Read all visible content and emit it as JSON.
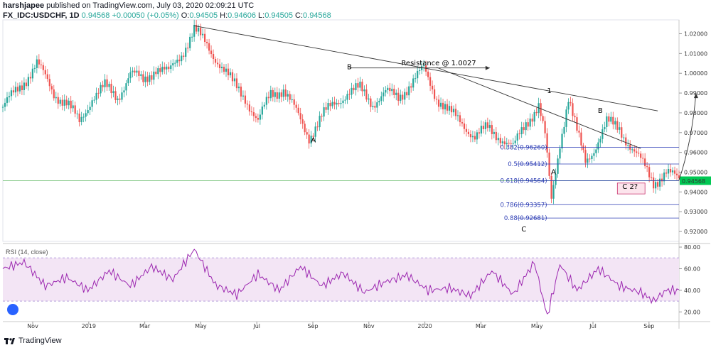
{
  "header": {
    "author": "harshjapee",
    "published": " published on TradingView.com, July 03, 2020 02:09:21 UTC",
    "symbol": "FX_IDC:USDCHF, 1D",
    "last": "0.94568",
    "change": "+0.00050 (+0.05%)",
    "open_label": "O:",
    "open": "0.94505",
    "high_label": "H:",
    "high": "0.94606",
    "low_label": "L:",
    "low": "0.94505",
    "close_label": "C:",
    "close": "0.94568"
  },
  "footer": {
    "brand": "TradingView"
  },
  "colors": {
    "up": "#26a69a",
    "down": "#ef5350",
    "fib": "#2f3fb5",
    "rsi": "#9c27b0",
    "rsi_band": "#f3e5f5",
    "price_tag": "#00c853"
  },
  "chart_data": {
    "type": "candlestick",
    "price_axis": {
      "ticks": [
        "1.02000",
        "1.01000",
        "1.00000",
        "0.99000",
        "0.98000",
        "0.97000",
        "0.96000",
        "0.95000",
        "0.94000",
        "0.93000",
        "0.92000"
      ],
      "ylim": [
        0.915,
        1.027
      ]
    },
    "current_price_tag": "0.94568",
    "time_axis": {
      "ticks": [
        "Nov",
        "2019",
        "Mar",
        "May",
        "Jul",
        "Sep",
        "Nov",
        "2020",
        "Mar",
        "May",
        "Jul",
        "Sep"
      ]
    },
    "close_path": [
      [
        0,
        0.983
      ],
      [
        8,
        0.993
      ],
      [
        16,
        1.005
      ],
      [
        24,
        0.99
      ],
      [
        30,
        0.985
      ],
      [
        36,
        0.975
      ],
      [
        42,
        0.988
      ],
      [
        48,
        0.993
      ],
      [
        54,
        0.988
      ],
      [
        60,
        1.0
      ],
      [
        66,
        0.996
      ],
      [
        72,
        1.003
      ],
      [
        78,
        1.0
      ],
      [
        84,
        1.01
      ],
      [
        90,
        1.022
      ],
      [
        96,
        1.014
      ],
      [
        102,
        1.005
      ],
      [
        108,
        0.995
      ],
      [
        114,
        0.988
      ],
      [
        120,
        0.975
      ],
      [
        126,
        0.99
      ],
      [
        132,
        0.992
      ],
      [
        138,
        0.98
      ],
      [
        144,
        0.968
      ],
      [
        150,
        0.978
      ],
      [
        156,
        0.985
      ],
      [
        162,
        0.99
      ],
      [
        168,
        0.992
      ],
      [
        174,
        0.985
      ],
      [
        180,
        0.99
      ],
      [
        186,
        0.988
      ],
      [
        192,
        0.995
      ],
      [
        198,
        1.002
      ],
      [
        204,
        0.988
      ],
      [
        210,
        0.98
      ],
      [
        216,
        0.975
      ],
      [
        222,
        0.968
      ],
      [
        228,
        0.972
      ],
      [
        234,
        0.968
      ],
      [
        240,
        0.962
      ],
      [
        246,
        0.975
      ],
      [
        252,
        0.984
      ],
      [
        255,
        0.968
      ],
      [
        258,
        0.935
      ],
      [
        262,
        0.965
      ],
      [
        266,
        0.988
      ],
      [
        270,
        0.97
      ],
      [
        274,
        0.955
      ],
      [
        278,
        0.962
      ],
      [
        284,
        0.975
      ],
      [
        290,
        0.972
      ],
      [
        296,
        0.962
      ],
      [
        302,
        0.952
      ],
      [
        306,
        0.945
      ],
      [
        312,
        0.95
      ],
      [
        318,
        0.9457
      ]
    ],
    "trendlines": [
      {
        "from": [
          90,
          1.024
        ],
        "to": [
          308,
          0.981
        ]
      },
      {
        "from": [
          204,
          1.003
        ],
        "to": [
          300,
          0.962
        ]
      }
    ],
    "annotations": [
      {
        "text": "B",
        "x": 163,
        "y": 1.002
      },
      {
        "text": "A",
        "x": 146,
        "y": 0.965
      },
      {
        "text": "Resistance @ 1.0027",
        "x": 205,
        "y": 1.004
      },
      {
        "text": "1",
        "x": 257,
        "y": 0.99
      },
      {
        "text": "A",
        "x": 259,
        "y": 0.949
      },
      {
        "text": "B",
        "x": 281,
        "y": 0.98
      },
      {
        "text": "C",
        "x": 245,
        "y": 0.92
      },
      {
        "text": "C 2?",
        "x": 295,
        "y": 0.9415
      }
    ],
    "fib_levels": [
      {
        "label": "0.382(0.96260)",
        "value": 0.9626
      },
      {
        "label": "0.5(0.95412)",
        "value": 0.95412
      },
      {
        "label": "0.618(0.94564)",
        "value": 0.94564
      },
      {
        "label": "0.786(0.93357)",
        "value": 0.93357
      },
      {
        "label": "0.88(0.92681)",
        "value": 0.92681
      }
    ],
    "rsi": {
      "title": "RSI (14, close)",
      "ticks": [
        "80.00",
        "60.00",
        "40.00",
        "20.00"
      ],
      "ylim": [
        13,
        82
      ],
      "band": [
        30,
        70
      ],
      "path": [
        [
          0,
          60
        ],
        [
          10,
          66
        ],
        [
          20,
          44
        ],
        [
          30,
          52
        ],
        [
          40,
          40
        ],
        [
          50,
          58
        ],
        [
          60,
          44
        ],
        [
          70,
          62
        ],
        [
          80,
          50
        ],
        [
          90,
          78
        ],
        [
          100,
          45
        ],
        [
          110,
          36
        ],
        [
          120,
          55
        ],
        [
          130,
          40
        ],
        [
          140,
          62
        ],
        [
          150,
          44
        ],
        [
          160,
          56
        ],
        [
          170,
          38
        ],
        [
          180,
          48
        ],
        [
          190,
          54
        ],
        [
          200,
          40
        ],
        [
          210,
          42
        ],
        [
          220,
          35
        ],
        [
          230,
          58
        ],
        [
          240,
          36
        ],
        [
          250,
          66
        ],
        [
          256,
          16
        ],
        [
          262,
          64
        ],
        [
          270,
          40
        ],
        [
          280,
          60
        ],
        [
          290,
          44
        ],
        [
          300,
          38
        ],
        [
          306,
          30
        ],
        [
          312,
          40
        ],
        [
          318,
          40
        ]
      ]
    }
  }
}
